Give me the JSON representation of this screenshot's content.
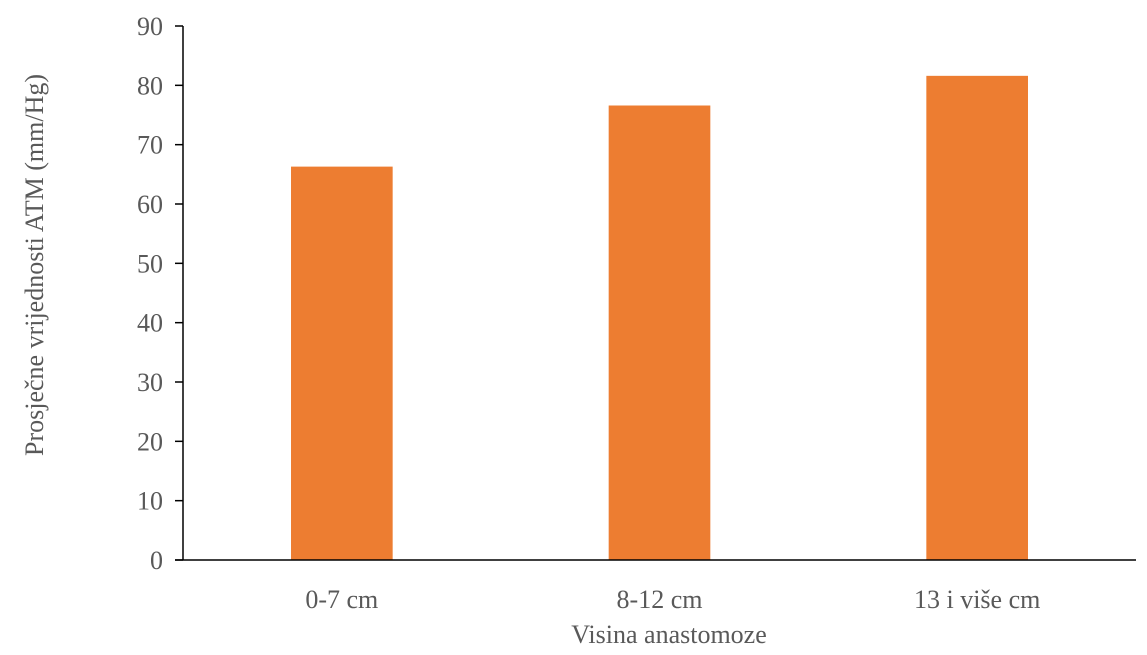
{
  "chart_data": {
    "type": "bar",
    "title": "",
    "categories": [
      "0-7 cm",
      "8-12 cm",
      "13 i više cm"
    ],
    "values": [
      66.3,
      76.6,
      81.6
    ],
    "xlabel": "Visina anastomoze",
    "ylabel": "Prosječne vrijednosti ATM (mm/Hg)",
    "ylim": [
      0,
      90
    ],
    "yticks": [
      0,
      10,
      20,
      30,
      40,
      50,
      60,
      70,
      80,
      90
    ],
    "grid": false,
    "legend": "none",
    "bar_color": "#ED7D31",
    "axis_color": "#000000"
  }
}
